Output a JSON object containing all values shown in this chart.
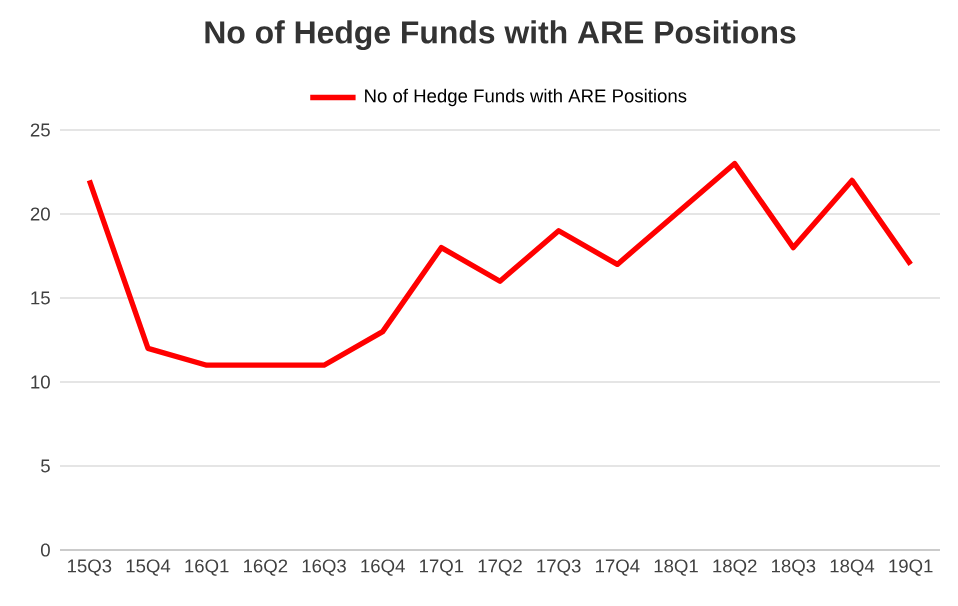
{
  "chart_data": {
    "type": "line",
    "title": "No of Hedge Funds with ARE Positions",
    "categories": [
      "15Q3",
      "15Q4",
      "16Q1",
      "16Q2",
      "16Q3",
      "16Q4",
      "17Q1",
      "17Q2",
      "17Q3",
      "17Q4",
      "18Q1",
      "18Q2",
      "18Q3",
      "18Q4",
      "19Q1"
    ],
    "series": [
      {
        "name": "No of Hedge Funds with ARE Positions",
        "color": "#ff0000",
        "values": [
          22,
          12,
          11,
          11,
          11,
          13,
          18,
          16,
          19,
          17,
          20,
          23,
          18,
          22,
          17
        ]
      }
    ],
    "ylim": [
      0,
      25
    ],
    "yticks": [
      0,
      5,
      10,
      15,
      20,
      25
    ],
    "grid": "y",
    "legend": "top"
  }
}
